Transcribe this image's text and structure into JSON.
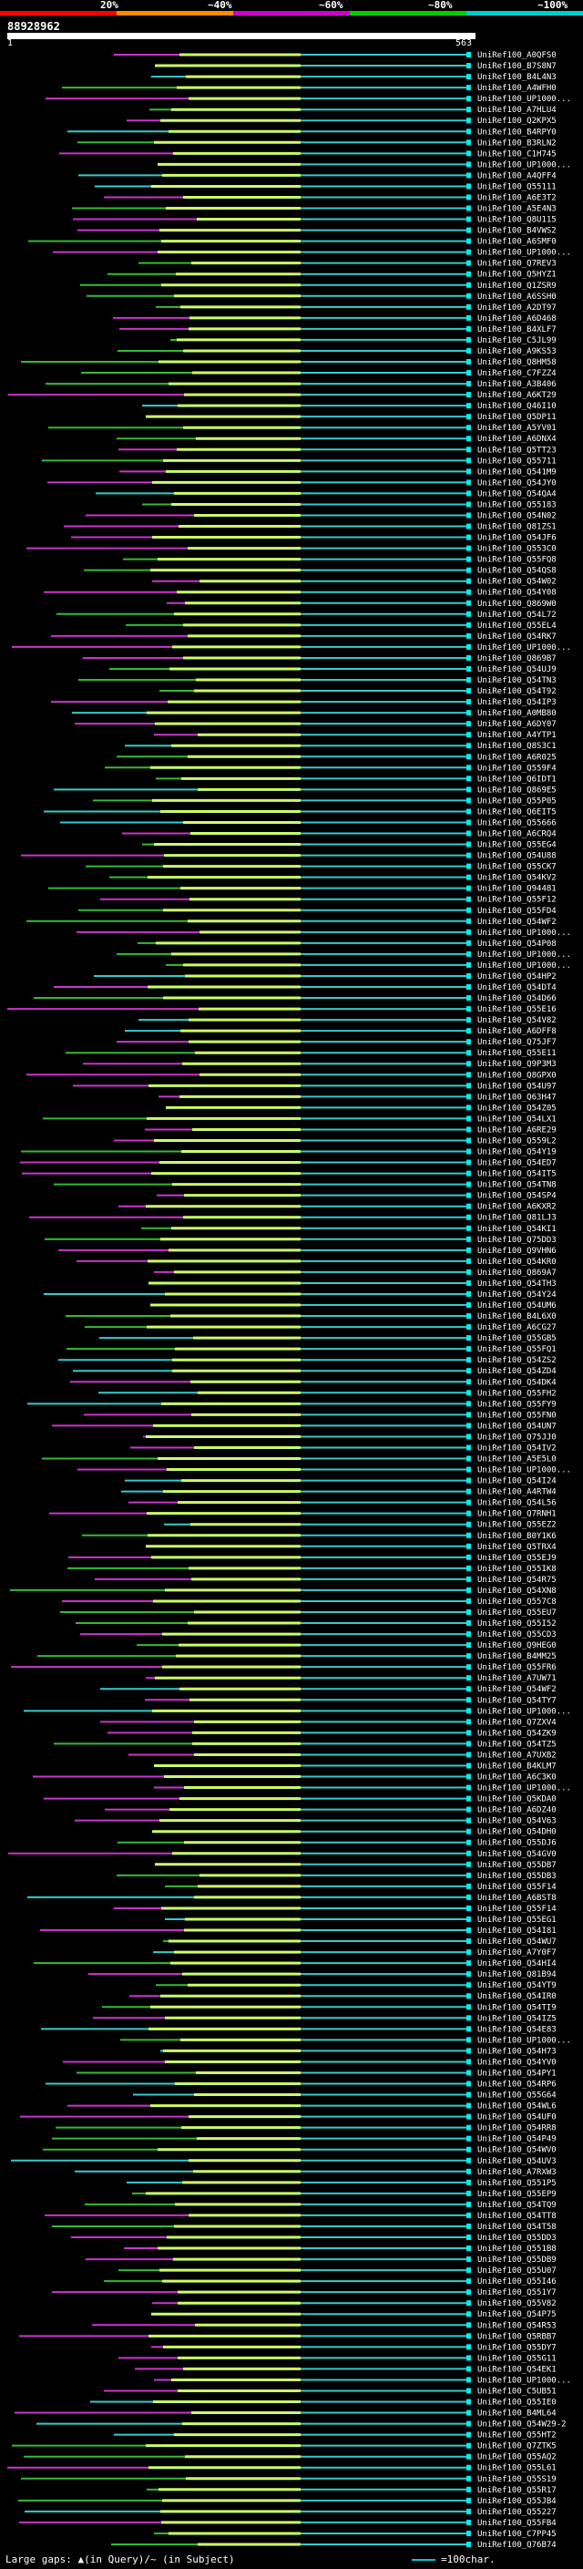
{
  "legend": {
    "labels": [
      "20%",
      "~40%",
      "~60%",
      "~80%",
      "~100%"
    ],
    "colors": [
      "#ff0000",
      "#ff8c00",
      "#cc00cc",
      "#00cc00",
      "#00cccc"
    ]
  },
  "query": {
    "id": "88928962",
    "start_label": "1",
    "end_label": "563"
  },
  "hits": [
    "UniRef100_A0QFS0",
    "UniRef100_B7S8N7",
    "UniRef100_B4L4N3",
    "UniRef100_A4WFH0",
    "UniRef100_UP1000...",
    "UniRef100_A7HLU4",
    "UniRef100_Q2KPX5",
    "UniRef100_B4RPY0",
    "UniRef100_B3RLN2",
    "UniRef100_C1H745",
    "UniRef100_UP1000...",
    "UniRef100_A4QFF4",
    "UniRef100_Q55111",
    "UniRef100_A6E3T2",
    "UniRef100_A5E4N3",
    "UniRef100_Q8U115",
    "UniRef100_B4VWS2",
    "UniRef100_A6SMF0",
    "UniRef100_UP1000...",
    "UniRef100_Q7REV3",
    "UniRef100_Q5HYZ1",
    "UniRef100_Q1ZSR9",
    "UniRef100_A6SSH0",
    "UniRef100_A2DT97",
    "UniRef100_A6D468",
    "UniRef100_B4XLF7",
    "UniRef100_C5JL99",
    "UniRef100_A9KS53",
    "UniRef100_Q8HM58",
    "UniRef100_C7FZZ4",
    "UniRef100_A3B406",
    "UniRef100_A6KT29",
    "UniRef100_Q46I10",
    "UniRef100_Q5DP11",
    "UniRef100_A5YV01",
    "UniRef100_A6DNX4",
    "UniRef100_Q5TT23",
    "UniRef100_Q55711",
    "UniRef100_Q541M9",
    "UniRef100_Q54JY0",
    "UniRef100_Q54QA4",
    "UniRef100_Q55183",
    "UniRef100_Q54N02",
    "UniRef100_Q81ZS1",
    "UniRef100_Q54JF6",
    "UniRef100_Q553C0",
    "UniRef100_Q55FQ8",
    "UniRef100_Q54QS8",
    "UniRef100_Q54W02",
    "UniRef100_Q54Y08",
    "UniRef100_Q869W0",
    "UniRef100_Q54L72",
    "UniRef100_Q55EL4",
    "UniRef100_Q54RK7",
    "UniRef100_UP1000...",
    "UniRef100_Q869B7",
    "UniRef100_Q54UJ9",
    "UniRef100_Q54TN3",
    "UniRef100_Q54T92",
    "UniRef100_Q54IP3",
    "UniRef100_A0MB80",
    "UniRef100_A6DY07",
    "UniRef100_A4YTP1",
    "UniRef100_Q8S3C1",
    "UniRef100_A6R025",
    "UniRef100_Q559F4",
    "UniRef100_Q6IDT1",
    "UniRef100_Q869E5",
    "UniRef100_Q55P05",
    "UniRef100_Q6EIT5",
    "UniRef100_Q55666",
    "UniRef100_A6CRQ4",
    "UniRef100_Q55EG4",
    "UniRef100_Q54U88",
    "UniRef100_Q55CK7",
    "UniRef100_Q54KV2",
    "UniRef100_Q94481",
    "UniRef100_Q55F12",
    "UniRef100_Q55FD4",
    "UniRef100_Q54WF2",
    "UniRef100_UP1000...",
    "UniRef100_Q54P08",
    "UniRef100_UP1000...",
    "UniRef100_UP1000...",
    "UniRef100_Q54HP2",
    "UniRef100_Q54DT4",
    "UniRef100_Q54D66",
    "UniRef100_Q55E16",
    "UniRef100_Q54V82",
    "UniRef100_A6DFF8",
    "UniRef100_Q75JF7",
    "UniRef100_Q55E11",
    "UniRef100_Q9P3M3",
    "UniRef100_Q8GPX0",
    "UniRef100_Q54U97",
    "UniRef100_Q63H47",
    "UniRef100_Q54Z05",
    "UniRef100_Q54LX1",
    "UniRef100_A6RE29",
    "UniRef100_Q559L2",
    "UniRef100_Q54Y19",
    "UniRef100_Q54ED7",
    "UniRef100_Q54IT5",
    "UniRef100_Q54TN8",
    "UniRef100_Q54SP4",
    "UniRef100_A6KXR2",
    "UniRef100_Q81LJ3",
    "UniRef100_Q54KI1",
    "UniRef100_Q75DD3",
    "UniRef100_Q9VHN6",
    "UniRef100_Q54KR0",
    "UniRef100_Q869A7",
    "UniRef100_Q54TH3",
    "UniRef100_Q54Y24",
    "UniRef100_Q54UM6",
    "UniRef100_B4L6X0",
    "UniRef100_A6CG27",
    "UniRef100_Q55GB5",
    "UniRef100_Q55FQ1",
    "UniRef100_Q54ZS2",
    "UniRef100_Q54ZD4",
    "UniRef100_Q54DK4",
    "UniRef100_Q55FH2",
    "UniRef100_Q55FY9",
    "UniRef100_Q55FN0",
    "UniRef100_Q54UN7",
    "UniRef100_Q75JJ0",
    "UniRef100_Q54IV2",
    "UniRef100_A5E5L0",
    "UniRef100_UP1000...",
    "UniRef100_Q54I24",
    "UniRef100_A4RTW4",
    "UniRef100_Q54L56",
    "UniRef100_Q7RNH1",
    "UniRef100_Q55EZ2",
    "UniRef100_B0Y1K6",
    "UniRef100_Q5TRX4",
    "UniRef100_Q55EJ9",
    "UniRef100_Q55IK8",
    "UniRef100_Q54R75",
    "UniRef100_Q54XN8",
    "UniRef100_Q557C8",
    "UniRef100_Q55EU7",
    "UniRef100_Q55I52",
    "UniRef100_Q55CD3",
    "UniRef100_Q9HEG0",
    "UniRef100_B4MM25",
    "UniRef100_Q55FR6",
    "UniRef100_A7UW71",
    "UniRef100_Q54WF2",
    "UniRef100_Q54TY7",
    "UniRef100_UP1000...",
    "UniRef100_Q7ZXV4",
    "UniRef100_Q54ZK9",
    "UniRef100_Q54TZ5",
    "UniRef100_A7UXB2",
    "UniRef100_B4KLM7",
    "UniRef100_A6C3K0",
    "UniRef100_UP1000...",
    "UniRef100_Q5KDA0",
    "UniRef100_A6DZ40",
    "UniRef100_Q54V63",
    "UniRef100_Q54DH0",
    "UniRef100_Q55DJ6",
    "UniRef100_Q54GV0",
    "UniRef100_Q55DB7",
    "UniRef100_Q55DB3",
    "UniRef100_Q55F14",
    "UniRef100_A6BST8",
    "UniRef100_Q55F14",
    "UniRef100_Q55EG1",
    "UniRef100_Q54I81",
    "UniRef100_Q54WU7",
    "UniRef100_A7Y0F7",
    "UniRef100_Q54HI4",
    "UniRef100_Q81B94",
    "UniRef100_Q54YT9",
    "UniRef100_Q54IR0",
    "UniRef100_Q54TI9",
    "UniRef100_Q54IZ5",
    "UniRef100_Q54E83",
    "UniRef100_UP1000...",
    "UniRef100_Q54H73",
    "UniRef100_Q54YV0",
    "UniRef100_Q54PY1",
    "UniRef100_Q54RP6",
    "UniRef100_Q55G64",
    "UniRef100_Q54WL6",
    "UniRef100_Q54UF0",
    "UniRef100_Q54RR8",
    "UniRef100_Q54P49",
    "UniRef100_Q54WV0",
    "UniRef100_Q54UV3",
    "UniRef100_A7RXW3",
    "UniRef100_Q551P5",
    "UniRef100_Q55EP9",
    "UniRef100_Q54TQ9",
    "UniRef100_Q54TT8",
    "UniRef100_Q54T58",
    "UniRef100_Q55DD3",
    "UniRef100_Q551B8",
    "UniRef100_Q55DB9",
    "UniRef100_Q55U07",
    "UniRef100_Q55I46",
    "UniRef100_Q551Y7",
    "UniRef100_Q55V82",
    "UniRef100_Q54P75",
    "UniRef100_Q54R53",
    "UniRef100_Q5RBB7",
    "UniRef100_Q55DY7",
    "UniRef100_Q55G11",
    "UniRef100_Q54EK1",
    "UniRef100_UP1000...",
    "UniRef100_C5UB51",
    "UniRef100_Q55IE0",
    "UniRef100_B4ML64",
    "UniRef100_Q54W29-2",
    "UniRef100_Q55HT2",
    "UniRef100_Q7ZTK5",
    "UniRef100_Q55AQ2",
    "UniRef100_Q55L61",
    "UniRef100_Q55S19",
    "UniRef100_Q55R17",
    "UniRef100_Q55JB4",
    "UniRef100_Q55227",
    "UniRef100_Q55FB4",
    "UniRef100_C7PP45",
    "UniRef100_Q76B74"
  ],
  "footer": {
    "gap_text": "Large gaps: ▲(in Query)/~ (in Subject)",
    "scale_text": "=100char."
  }
}
